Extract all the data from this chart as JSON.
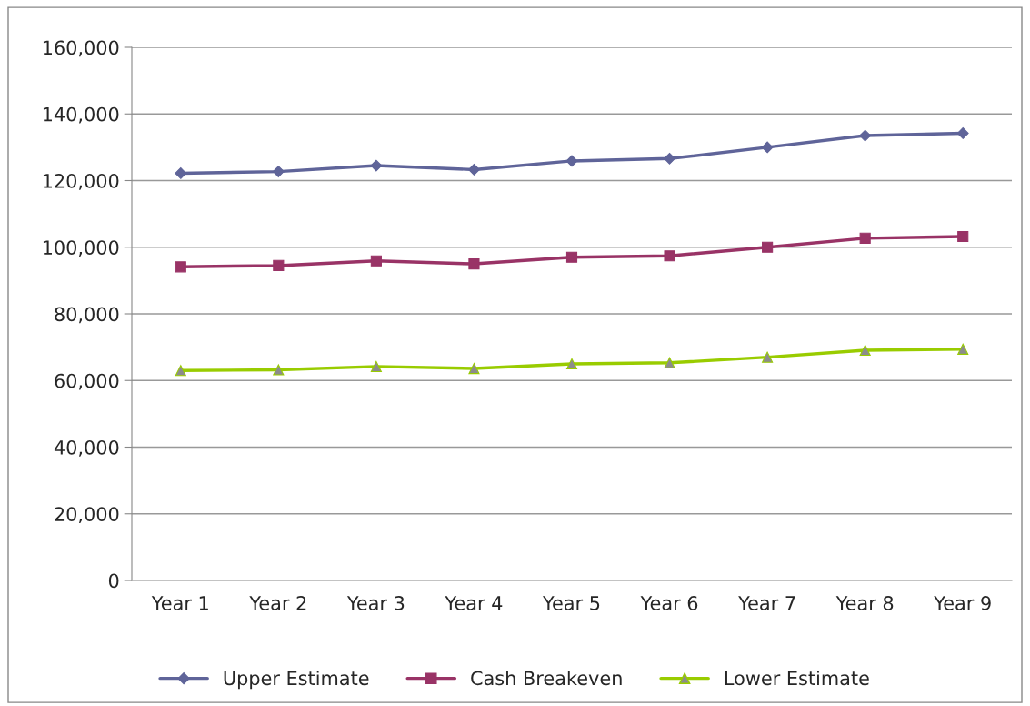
{
  "chart_data": {
    "type": "line",
    "categories": [
      "Year 1",
      "Year 2",
      "Year 3",
      "Year 4",
      "Year 5",
      "Year 6",
      "Year 7",
      "Year 8",
      "Year 9"
    ],
    "series": [
      {
        "name": "Upper Estimate",
        "color": "#5f6499",
        "marker": "diamond",
        "values": [
          122200,
          122700,
          124500,
          123300,
          125900,
          126600,
          130000,
          133500,
          134200
        ]
      },
      {
        "name": "Cash Breakeven",
        "color": "#993366",
        "marker": "square",
        "values": [
          94100,
          94500,
          95900,
          95000,
          97000,
          97400,
          100000,
          102700,
          103200
        ]
      },
      {
        "name": "Lower Estimate",
        "color": "#99cc00",
        "marker": "triangle",
        "values": [
          63000,
          63200,
          64200,
          63600,
          65000,
          65300,
          67000,
          69100,
          69400
        ]
      }
    ],
    "ylim": [
      0,
      160000
    ],
    "yticks": [
      {
        "value": 0,
        "label": "0"
      },
      {
        "value": 20000,
        "label": "20,000"
      },
      {
        "value": 40000,
        "label": "40,000"
      },
      {
        "value": 60000,
        "label": "60,000"
      },
      {
        "value": 80000,
        "label": "80,000"
      },
      {
        "value": 100000,
        "label": "100,000"
      },
      {
        "value": 120000,
        "label": "120,000"
      },
      {
        "value": 140000,
        "label": "140,000"
      },
      {
        "value": 160000,
        "label": "160,000"
      }
    ],
    "grid": "y",
    "legend": "bottom",
    "line_style": "solid"
  }
}
